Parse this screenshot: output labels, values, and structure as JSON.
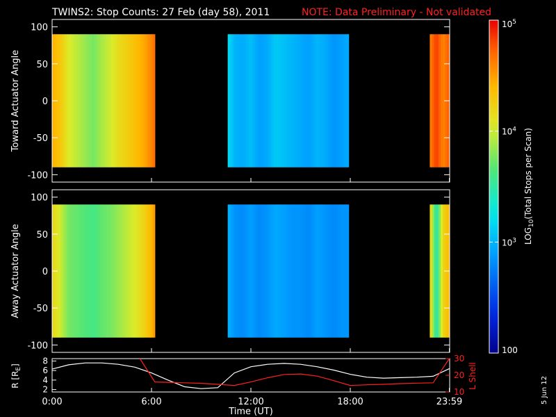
{
  "header": {
    "title": "TWINS2: Stop Counts: 27 Feb (day  58), 2011",
    "note": "NOTE: Data Preliminary - Not validated"
  },
  "footer": {
    "date_stamp": "5 Jun 12"
  },
  "colors": {
    "background": "#000000",
    "axes": "#ffffff",
    "note": "#ff2020",
    "r_line": "#ffffff",
    "lshell_line": "#ff2020"
  },
  "chart_data": [
    {
      "type": "heatmap",
      "title": "",
      "ylabel": "Toward Actuator Angle",
      "ylim": [
        -110,
        110
      ],
      "yticks": [
        100,
        50,
        0,
        -50,
        -100
      ],
      "data_angle_range": [
        -90,
        90
      ],
      "xlim_hours": [
        0,
        24
      ],
      "data_intervals_hours": [
        [
          0,
          6.2
        ],
        [
          10.6,
          17.9
        ],
        [
          22.8,
          23.98
        ]
      ],
      "colorscale": "log10",
      "approx_log10_counts_by_hour": [
        [
          0.0,
          4.45
        ],
        [
          0.5,
          4.3
        ],
        [
          1.0,
          4.05
        ],
        [
          1.5,
          3.95
        ],
        [
          2.0,
          3.85
        ],
        [
          2.5,
          3.75
        ],
        [
          3.0,
          3.9
        ],
        [
          3.5,
          4.0
        ],
        [
          4.0,
          4.15
        ],
        [
          4.5,
          4.25
        ],
        [
          5.0,
          4.35
        ],
        [
          5.5,
          4.45
        ],
        [
          6.0,
          4.6
        ],
        [
          6.2,
          4.7
        ],
        [
          10.6,
          3.2
        ],
        [
          11.0,
          3.0
        ],
        [
          11.5,
          2.95
        ],
        [
          12.0,
          3.05
        ],
        [
          12.5,
          2.9
        ],
        [
          13.0,
          2.95
        ],
        [
          13.5,
          3.1
        ],
        [
          14.0,
          3.05
        ],
        [
          14.5,
          3.0
        ],
        [
          15.0,
          2.95
        ],
        [
          15.5,
          2.9
        ],
        [
          16.0,
          3.0
        ],
        [
          16.5,
          2.95
        ],
        [
          17.0,
          2.85
        ],
        [
          17.5,
          2.9
        ],
        [
          17.9,
          2.95
        ],
        [
          22.8,
          4.6
        ],
        [
          23.2,
          4.85
        ],
        [
          23.6,
          4.6
        ],
        [
          23.98,
          4.75
        ]
      ]
    },
    {
      "type": "heatmap",
      "title": "",
      "ylabel": "Away Actuator Angle",
      "ylim": [
        -110,
        110
      ],
      "yticks": [
        100,
        50,
        0,
        -50,
        -100
      ],
      "data_angle_range": [
        -90,
        90
      ],
      "xlim_hours": [
        0,
        24
      ],
      "data_intervals_hours": [
        [
          0,
          6.2
        ],
        [
          10.6,
          17.9
        ],
        [
          22.8,
          23.98
        ]
      ],
      "colorscale": "log10",
      "approx_log10_counts_by_hour": [
        [
          0.0,
          4.2
        ],
        [
          0.5,
          4.0
        ],
        [
          1.0,
          3.75
        ],
        [
          1.5,
          3.7
        ],
        [
          2.0,
          3.65
        ],
        [
          2.5,
          3.6
        ],
        [
          3.0,
          3.7
        ],
        [
          3.5,
          3.75
        ],
        [
          4.0,
          3.85
        ],
        [
          4.5,
          3.95
        ],
        [
          5.0,
          4.05
        ],
        [
          5.5,
          4.2
        ],
        [
          6.0,
          4.4
        ],
        [
          6.2,
          4.55
        ],
        [
          10.6,
          3.0
        ],
        [
          11.0,
          2.85
        ],
        [
          11.5,
          2.8
        ],
        [
          12.0,
          2.9
        ],
        [
          12.5,
          2.8
        ],
        [
          13.0,
          2.85
        ],
        [
          13.5,
          2.95
        ],
        [
          14.0,
          2.9
        ],
        [
          14.5,
          2.85
        ],
        [
          15.0,
          2.85
        ],
        [
          15.5,
          2.8
        ],
        [
          16.0,
          2.9
        ],
        [
          16.5,
          2.85
        ],
        [
          17.0,
          2.8
        ],
        [
          17.5,
          2.85
        ],
        [
          17.9,
          2.85
        ],
        [
          22.8,
          4.3
        ],
        [
          23.2,
          3.4
        ],
        [
          23.6,
          4.2
        ],
        [
          23.98,
          4.4
        ]
      ]
    },
    {
      "type": "line",
      "title": "",
      "xlabel": "Time (UT)",
      "xticks": [
        "0:00",
        "6:00",
        "12:00",
        "18:00",
        "23:59"
      ],
      "xtick_hours": [
        0,
        6,
        12,
        18,
        23.98
      ],
      "ylabel": "R [R",
      "ylabel_sub": "E",
      "ylabel_end": "]",
      "ylim": [
        1.5,
        8.5
      ],
      "yticks": [
        2,
        4,
        6,
        8
      ],
      "ylabel_right": "L Shell",
      "ylim_right": [
        10,
        30
      ],
      "yticks_right": [
        10,
        20,
        30
      ],
      "series": [
        {
          "name": "R",
          "axis": "left",
          "x": [
            0,
            1,
            2,
            3,
            4,
            5,
            6,
            7,
            8,
            9,
            10,
            11,
            12,
            13,
            14,
            15,
            16,
            17,
            18,
            19,
            20,
            21,
            22,
            23,
            23.98
          ],
          "y": [
            6.3,
            7.2,
            7.6,
            7.6,
            7.3,
            6.7,
            5.5,
            4.0,
            2.6,
            2.2,
            2.4,
            5.5,
            6.8,
            7.3,
            7.5,
            7.3,
            6.8,
            6.1,
            5.2,
            4.6,
            4.4,
            4.5,
            4.6,
            4.8,
            6.4
          ]
        },
        {
          "name": "L Shell",
          "axis": "right",
          "x": [
            5.3,
            6.2,
            7,
            8,
            9,
            10,
            11,
            12,
            13,
            14,
            15,
            16,
            17,
            18,
            19,
            20,
            21,
            22,
            23,
            23.98
          ],
          "y": [
            30,
            16,
            15.8,
            15.5,
            15.2,
            14.6,
            13.9,
            16.0,
            18.5,
            20.5,
            20.8,
            19.5,
            16.8,
            13.9,
            14.3,
            14.6,
            15.0,
            15.3,
            15.5,
            30
          ]
        }
      ]
    },
    {
      "type": "colorbar",
      "scale": "log",
      "range_counts": [
        100,
        100000
      ],
      "ticks": [
        {
          "value": 100,
          "label": "100"
        },
        {
          "value": 1000,
          "label_base": "10",
          "label_exp": "3"
        },
        {
          "value": 10000,
          "label_base": "10",
          "label_exp": "4"
        },
        {
          "value": 100000,
          "label_base": "10",
          "label_exp": "5"
        }
      ],
      "label_prefix": "LOG",
      "label_sub": "10",
      "label_suffix": "(Total Stops per Scan)"
    }
  ]
}
